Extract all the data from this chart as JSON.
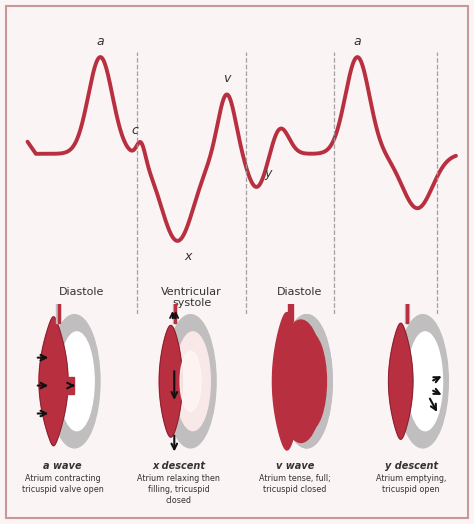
{
  "bg_color": "#faf4f4",
  "border_color": "#c89898",
  "waveform_color": "#b83040",
  "waveform_linewidth": 2.8,
  "dashed_color": "#999999",
  "text_color": "#333333",
  "wave_labels": [
    "a wave",
    "x descent",
    "v wave",
    "y descent"
  ],
  "wave_descriptions": [
    "Atrium contracting\ntricuspid valve open",
    "Atrium relaxing then\nfilling, tricuspid\nclosed",
    "Atrium tense, full;\ntricuspid closed",
    "Atrium emptying,\ntricuspid open"
  ],
  "gray_peri": "#c0bebe",
  "red_heart": "#b83040",
  "light_interior": "#f8e8e8",
  "white": "#ffffff",
  "dark_gray": "#888888"
}
